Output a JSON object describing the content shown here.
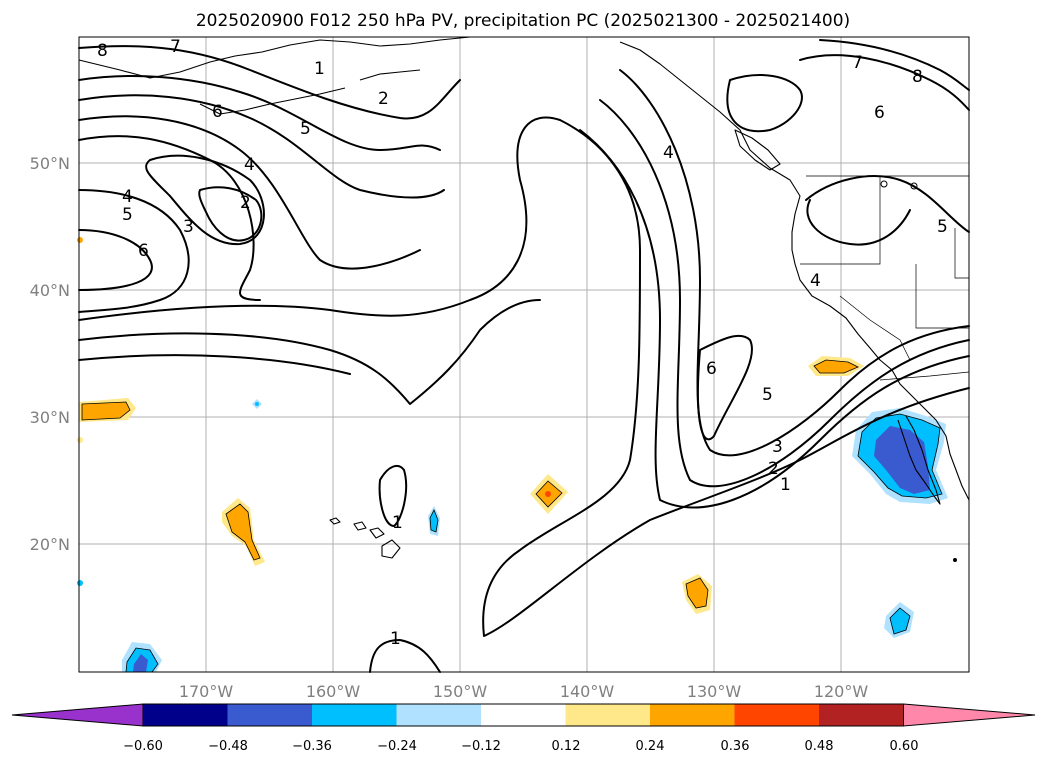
{
  "title": "2025020900 F012 250 hPa PV, precipitation PC (2025021300 - 2025021400)",
  "longitude_labels": [
    "170°W",
    "160°W",
    "150°W",
    "140°W",
    "130°W",
    "120°W"
  ],
  "latitude_labels": [
    "50°N",
    "40°N",
    "30°N",
    "20°N"
  ],
  "colorbar": {
    "ticks": [
      "−0.60",
      "−0.48",
      "−0.36",
      "−0.24",
      "−0.12",
      "0.12",
      "0.24",
      "0.36",
      "0.48",
      "0.60"
    ],
    "colors": [
      "#9932cc",
      "#00008b",
      "#3a5bd0",
      "#00bfff",
      "#b0e2ff",
      "#ffffff",
      "#ffe88a",
      "#ffa500",
      "#ff4500",
      "#b22222",
      "#ff88aa"
    ]
  },
  "contour_labels": [
    "8",
    "7",
    "1",
    "2",
    "6",
    "5",
    "4",
    "2",
    "3",
    "4",
    "5",
    "6",
    "4",
    "6",
    "5",
    "3",
    "2",
    "1",
    "1",
    "1",
    "7",
    "8",
    "6",
    "5",
    "4"
  ],
  "chart_data": {
    "type": "map",
    "fields": [
      "250 hPa potential vorticity (contours, PVU)",
      "precipitation PC (shaded)"
    ],
    "pv_contour_levels": [
      1,
      2,
      3,
      4,
      5,
      6,
      7,
      8
    ],
    "precip_levels": [
      -0.6,
      -0.48,
      -0.36,
      -0.24,
      -0.12,
      0.12,
      0.24,
      0.36,
      0.48,
      0.6
    ],
    "lon_range": [
      -180,
      -110
    ],
    "lat_range": [
      10,
      60
    ],
    "grid": true
  }
}
